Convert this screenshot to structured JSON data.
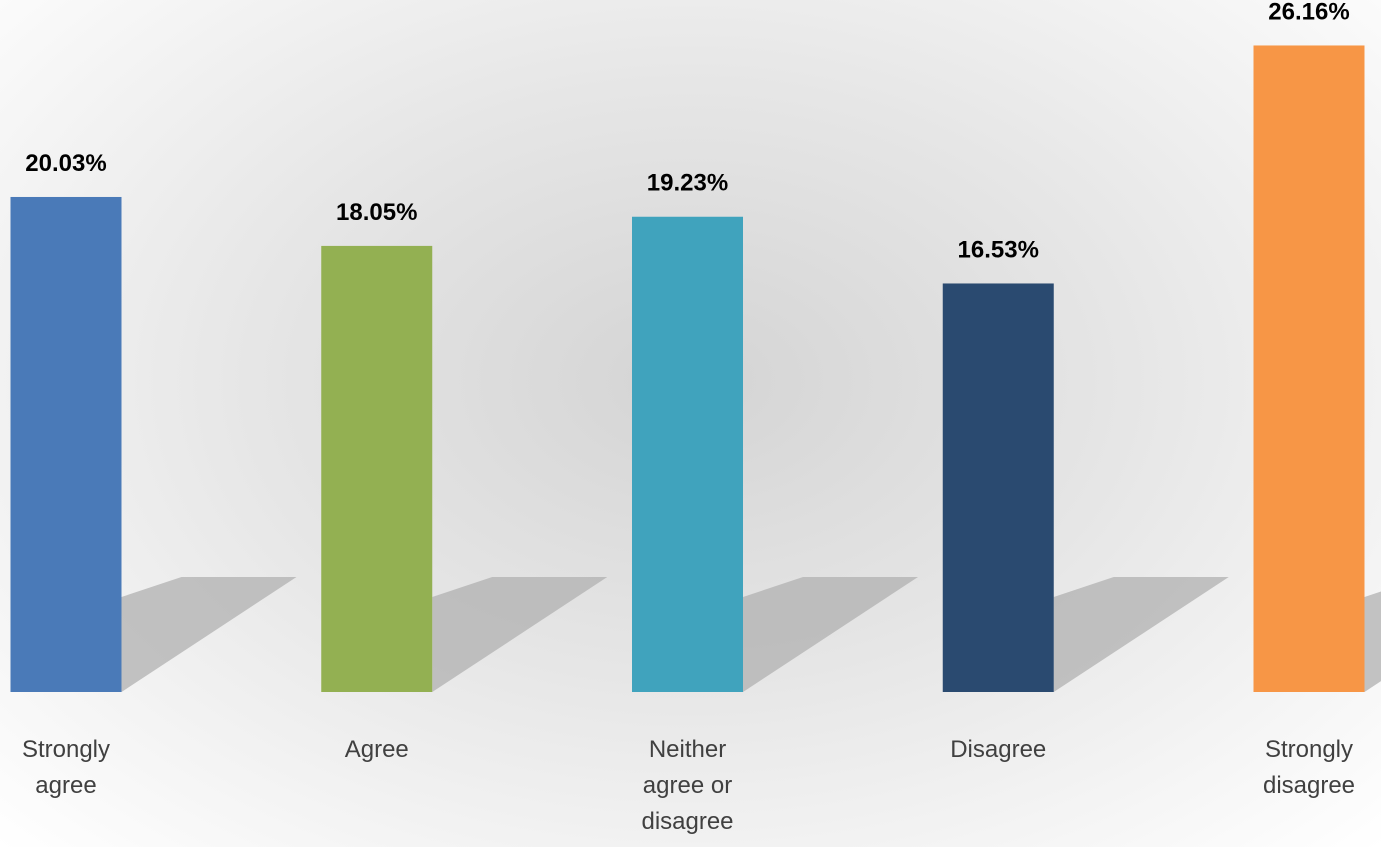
{
  "chart_data": {
    "type": "bar",
    "categories": [
      "Strongly agree",
      "Agree",
      "Neither agree or disagree",
      "Disagree",
      "Strongly disagree"
    ],
    "values": [
      20.03,
      18.05,
      19.23,
      16.53,
      26.16
    ],
    "value_labels": [
      "20.03%",
      "18.05%",
      "19.23%",
      "16.53%",
      "26.16%"
    ],
    "colors": [
      "#4a7ab8",
      "#93b052",
      "#40a3bd",
      "#2a4a70",
      "#f79646"
    ],
    "ylim": [
      0,
      28
    ]
  }
}
